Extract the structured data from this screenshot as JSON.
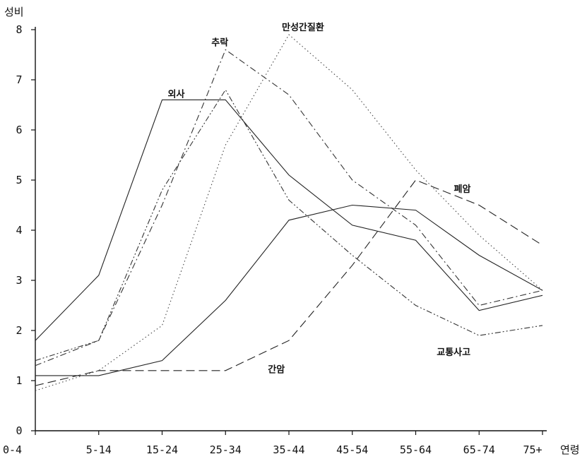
{
  "chart_data": {
    "type": "line",
    "ylabel": "성비",
    "xlabel": "연령",
    "categories": [
      "0-4",
      "5-14",
      "15-24",
      "25-34",
      "35-44",
      "45-54",
      "55-64",
      "65-74",
      "75+"
    ],
    "ylim": [
      0,
      8
    ],
    "yticks": [
      0,
      1,
      2,
      3,
      4,
      5,
      6,
      7,
      8
    ],
    "grid": false,
    "legend": "none",
    "series": [
      {
        "name": "외사",
        "values": [
          1.8,
          3.1,
          6.6,
          6.6,
          5.1,
          4.1,
          3.8,
          2.4,
          2.7
        ],
        "color": "#222222",
        "dash": "solid"
      },
      {
        "name": "추락",
        "values": [
          1.3,
          1.8,
          4.5,
          7.6,
          6.7,
          5.0,
          4.1,
          2.5,
          2.8
        ],
        "color": "#333333",
        "dash": "dashdot"
      },
      {
        "name": "만성간질환",
        "values": [
          0.8,
          1.2,
          2.1,
          5.7,
          7.9,
          6.8,
          5.2,
          3.9,
          2.8
        ],
        "color": "#444444",
        "dash": "dotted"
      },
      {
        "name": "간암",
        "values": [
          1.1,
          1.1,
          1.4,
          2.6,
          4.2,
          4.5,
          4.4,
          3.5,
          2.8
        ],
        "color": "#222222",
        "dash": "solid"
      },
      {
        "name": "폐암",
        "values": [
          0.9,
          1.2,
          1.2,
          1.2,
          1.8,
          3.3,
          5.0,
          4.5,
          3.7
        ],
        "color": "#222222",
        "dash": "longdash"
      },
      {
        "name": "교통사고",
        "values": [
          1.4,
          1.8,
          4.8,
          6.8,
          4.6,
          3.5,
          2.5,
          1.9,
          2.1
        ],
        "color": "#333333",
        "dash": "dashdotdot"
      }
    ]
  }
}
